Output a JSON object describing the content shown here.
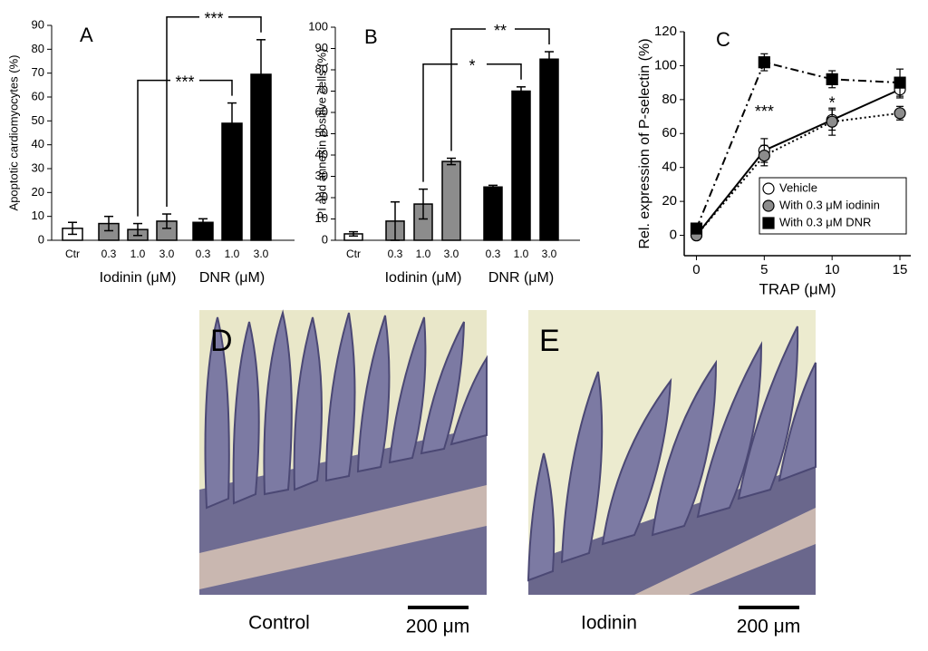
{
  "chart_data": [
    {
      "type": "bar",
      "panel": "A",
      "ylabel": "Apoptotic cardiomyocytes (%)",
      "categories": [
        "Ctr",
        "0.3",
        "1.0",
        "3.0",
        "0.3",
        "1.0",
        "3.0"
      ],
      "values": [
        5,
        7,
        4.5,
        8,
        7.5,
        49,
        69.5
      ],
      "errors": [
        2.5,
        3,
        2.5,
        3,
        1.5,
        8.5,
        14.5
      ],
      "colors": [
        "#ffffff",
        "#8c8c8c",
        "#8c8c8c",
        "#8c8c8c",
        "#000000",
        "#000000",
        "#000000"
      ],
      "groups": [
        {
          "label": "Iodinin (μM)",
          "from": 1,
          "to": 3
        },
        {
          "label": "DNR (μM)",
          "from": 4,
          "to": 6
        }
      ],
      "ylim": [
        0,
        90
      ],
      "yticks": [
        0,
        10,
        20,
        30,
        40,
        50,
        60,
        70,
        80,
        90
      ],
      "annotations": [
        {
          "text": "***",
          "from": 2,
          "to": 5
        },
        {
          "text": "***",
          "from": 3,
          "to": 6
        }
      ]
    },
    {
      "type": "bar",
      "panel": "B",
      "ylabel": "PI and annexin positive cells (%)",
      "categories": [
        "Ctr",
        "0.3",
        "1.0",
        "3.0",
        "0.3",
        "1.0",
        "3.0"
      ],
      "values": [
        3,
        9,
        17,
        37,
        25,
        70,
        85
      ],
      "errors": [
        1,
        9,
        7,
        1.5,
        0.8,
        2,
        3.5
      ],
      "colors": [
        "#ffffff",
        "#8c8c8c",
        "#8c8c8c",
        "#8c8c8c",
        "#000000",
        "#000000",
        "#000000"
      ],
      "groups": [
        {
          "label": "Iodinin (μM)",
          "from": 1,
          "to": 3
        },
        {
          "label": "DNR (μM)",
          "from": 4,
          "to": 6
        }
      ],
      "ylim": [
        0,
        100
      ],
      "yticks": [
        0,
        10,
        20,
        30,
        40,
        50,
        60,
        70,
        80,
        90,
        100
      ],
      "annotations": [
        {
          "text": "*",
          "from": 2,
          "to": 5
        },
        {
          "text": "**",
          "from": 3,
          "to": 6
        }
      ]
    },
    {
      "type": "line",
      "panel": "C",
      "xlabel": "TRAP (μM)",
      "ylabel": "Rel. expression of P-selectin (%)",
      "x": [
        0,
        5,
        10,
        15
      ],
      "series": [
        {
          "name": "Vehicle",
          "color": "#ffffff",
          "marker": "circle",
          "line_style": "solid",
          "values": [
            0,
            50,
            68,
            86
          ],
          "errors": [
            1,
            7,
            6,
            5
          ]
        },
        {
          "name": "With 0.3 μM iodinin",
          "color": "#8c8c8c",
          "marker": "circle",
          "line_style": "dotted",
          "values": [
            0,
            47,
            67,
            72
          ],
          "errors": [
            1,
            6,
            8,
            4
          ]
        },
        {
          "name": "With 0.3 μM DNR",
          "color": "#000000",
          "marker": "square",
          "line_style": "dashdot",
          "values": [
            4,
            102,
            92,
            90
          ],
          "errors": [
            1,
            5,
            5,
            8
          ]
        }
      ],
      "xlim": [
        -0.9,
        15.8
      ],
      "xticks": [
        0,
        5,
        10,
        15
      ],
      "ylim": [
        -12,
        120
      ],
      "yticks": [
        0,
        20,
        40,
        60,
        80,
        100,
        120
      ],
      "legend": "lower right",
      "annotations": [
        {
          "text": "***",
          "x": 5
        },
        {
          "text": "*",
          "x": 10
        }
      ]
    }
  ],
  "images": [
    {
      "panel": "D",
      "caption": "Control",
      "scale_bar": "200 μm"
    },
    {
      "panel": "E",
      "caption": "Iodinin",
      "scale_bar": "200 μm"
    }
  ]
}
